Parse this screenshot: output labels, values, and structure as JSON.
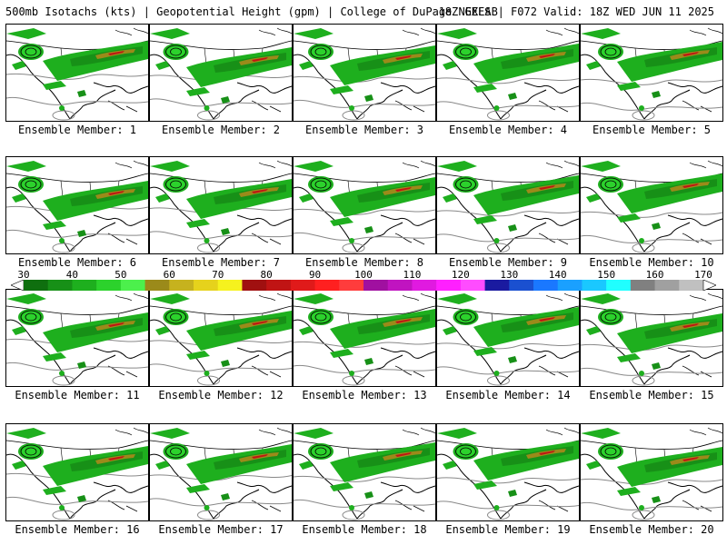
{
  "header": {
    "left_title": "500mb Isotachs (kts) | Geopotential Height (gpm) | College of DuPage NEXLAB",
    "right_title": "18Z GEFS | F072 Valid: 18Z WED JUN 11 2025"
  },
  "panels": [
    {
      "label": "Ensemble Member: 1"
    },
    {
      "label": "Ensemble Member: 2"
    },
    {
      "label": "Ensemble Member: 3"
    },
    {
      "label": "Ensemble Member: 4"
    },
    {
      "label": "Ensemble Member: 5"
    },
    {
      "label": "Ensemble Member: 6"
    },
    {
      "label": "Ensemble Member: 7"
    },
    {
      "label": "Ensemble Member: 8"
    },
    {
      "label": "Ensemble Member: 9"
    },
    {
      "label": "Ensemble Member: 10"
    },
    {
      "label": "Ensemble Member: 11"
    },
    {
      "label": "Ensemble Member: 12"
    },
    {
      "label": "Ensemble Member: 13"
    },
    {
      "label": "Ensemble Member: 14"
    },
    {
      "label": "Ensemble Member: 15"
    },
    {
      "label": "Ensemble Member: 16"
    },
    {
      "label": "Ensemble Member: 17"
    },
    {
      "label": "Ensemble Member: 18"
    },
    {
      "label": "Ensemble Member: 19"
    },
    {
      "label": "Ensemble Member: 20"
    }
  ],
  "colorbar": {
    "labels": [
      "30",
      "40",
      "50",
      "60",
      "70",
      "80",
      "90",
      "100",
      "110",
      "120",
      "130",
      "140",
      "150",
      "160",
      "170"
    ],
    "colors": [
      "#0f6f0f",
      "#179017",
      "#1eaf1e",
      "#2cd22c",
      "#4cf04c",
      "#9b8a1a",
      "#c6b21e",
      "#e6d21c",
      "#f6f21e",
      "#a01010",
      "#c01414",
      "#e01a1a",
      "#ff2020",
      "#ff3c3c",
      "#a010a0",
      "#c014c0",
      "#e01ae0",
      "#ff20ff",
      "#ff4cff",
      "#1a1aa0",
      "#1a50d0",
      "#1a78ff",
      "#1aa0ff",
      "#1ac8ff",
      "#20ffff",
      "#808080",
      "#a0a0a0",
      "#c0c0c0"
    ]
  }
}
